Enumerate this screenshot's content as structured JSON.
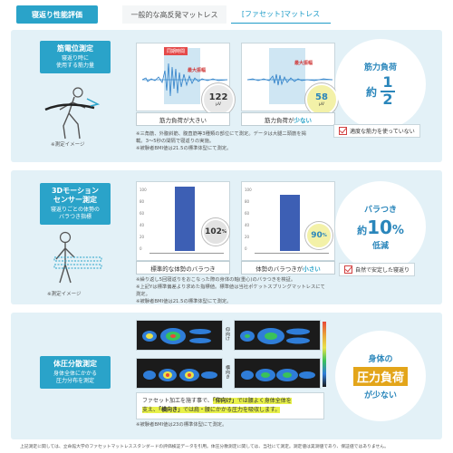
{
  "header": {
    "eval_label": "寝返り性能評価",
    "normal_label": "一般的な高反発マットレス",
    "facet_label": "[ファセット]マットレス"
  },
  "muscle": {
    "title": "筋電位測定",
    "sub1": "寝返り時に",
    "sub2": "使用する筋力量",
    "person_note": "※測定イメージ",
    "normal_chart": {
      "tag1": "同期時間",
      "tag2": "最大振幅",
      "value": "122",
      "unit": "μV",
      "caption": "筋力負荷が大きい"
    },
    "facet_chart": {
      "tag2": "最大振幅",
      "value": "58",
      "unit": "μV",
      "caption_pre": "筋力負荷が",
      "caption_hl": "少ない"
    },
    "notes": [
      "※三角筋、外腹斜筋、腹直筋等3種類の部位にて測定。データは大腿二頭筋を掲",
      "載。3〜5秒の間隔で寝返りの実施。",
      "※被験者BMI値は21.5の標準体型にて測定。"
    ],
    "result": {
      "line1": "筋力負荷",
      "prefix": "約",
      "numerator": "1",
      "denominator": "2"
    },
    "check": "適度な筋力を使っていない"
  },
  "motion": {
    "title1": "3Dモーション",
    "title2": "センサー測定",
    "sub1": "寝返りごとの体勢の",
    "sub2": "バラつき指標",
    "person_note": "※測定イメージ",
    "normal_chart": {
      "pct": "102",
      "pct_unit": "%",
      "caption": "標準的な体勢のバラつき"
    },
    "facet_chart": {
      "pct": "90",
      "pct_unit": "%",
      "caption_pre": "体勢のバラつきが",
      "caption_hl": "小さい"
    },
    "yticks": [
      "100",
      "80",
      "60",
      "40",
      "20",
      "0"
    ],
    "notes": [
      "※繰り返し5回寝返りをおこなった際の身体の軸(重心)のバラつきを検証。",
      "※上記Yは標準偏差より求めた指標値。標準値は当社ポケットスプリングマットレスにて",
      "測定。",
      "※被験者BMI値は21.5の標準体型にて測定。"
    ],
    "result": {
      "line1": "バラつき",
      "prefix": "約",
      "value": "10",
      "unit": "%",
      "line3": "低減"
    },
    "check": "自然で安定した寝返り"
  },
  "pressure": {
    "title": "体圧分散測定",
    "sub1": "身体全体にかかる",
    "sub2": "圧力分布を測定",
    "label_back": "仰向け",
    "label_side": "横向き",
    "body_text1_pre": "ファセット加工を施す事で、",
    "body_text1_hl": "「仰向け」",
    "body_text1_post": "では腰よく身体全体を",
    "body_text2_pre": "支え、",
    "body_text2_hl": "「横向き」",
    "body_text2_post": "では肩・腰にかかる圧力を吸収します。",
    "note": "※被験者BMI値は23の標準体型にて測定。",
    "result": {
      "line1": "身体の",
      "line2": "圧力負荷",
      "line3": "が少ない"
    }
  },
  "footer": "上記測定に関しては、立命館大学のファセットマットレススタンダードの評価検証データを引用。体圧分散測定に関しては、当社にて測定。測定値は実測値であり、保証値ではありません。",
  "colors": {
    "accent": "#2aa3c9",
    "section_bg": "#e3f1f7",
    "bar": "#3d5fb4",
    "highlight": "#e8f14a",
    "result_text": "#2a86bb"
  }
}
